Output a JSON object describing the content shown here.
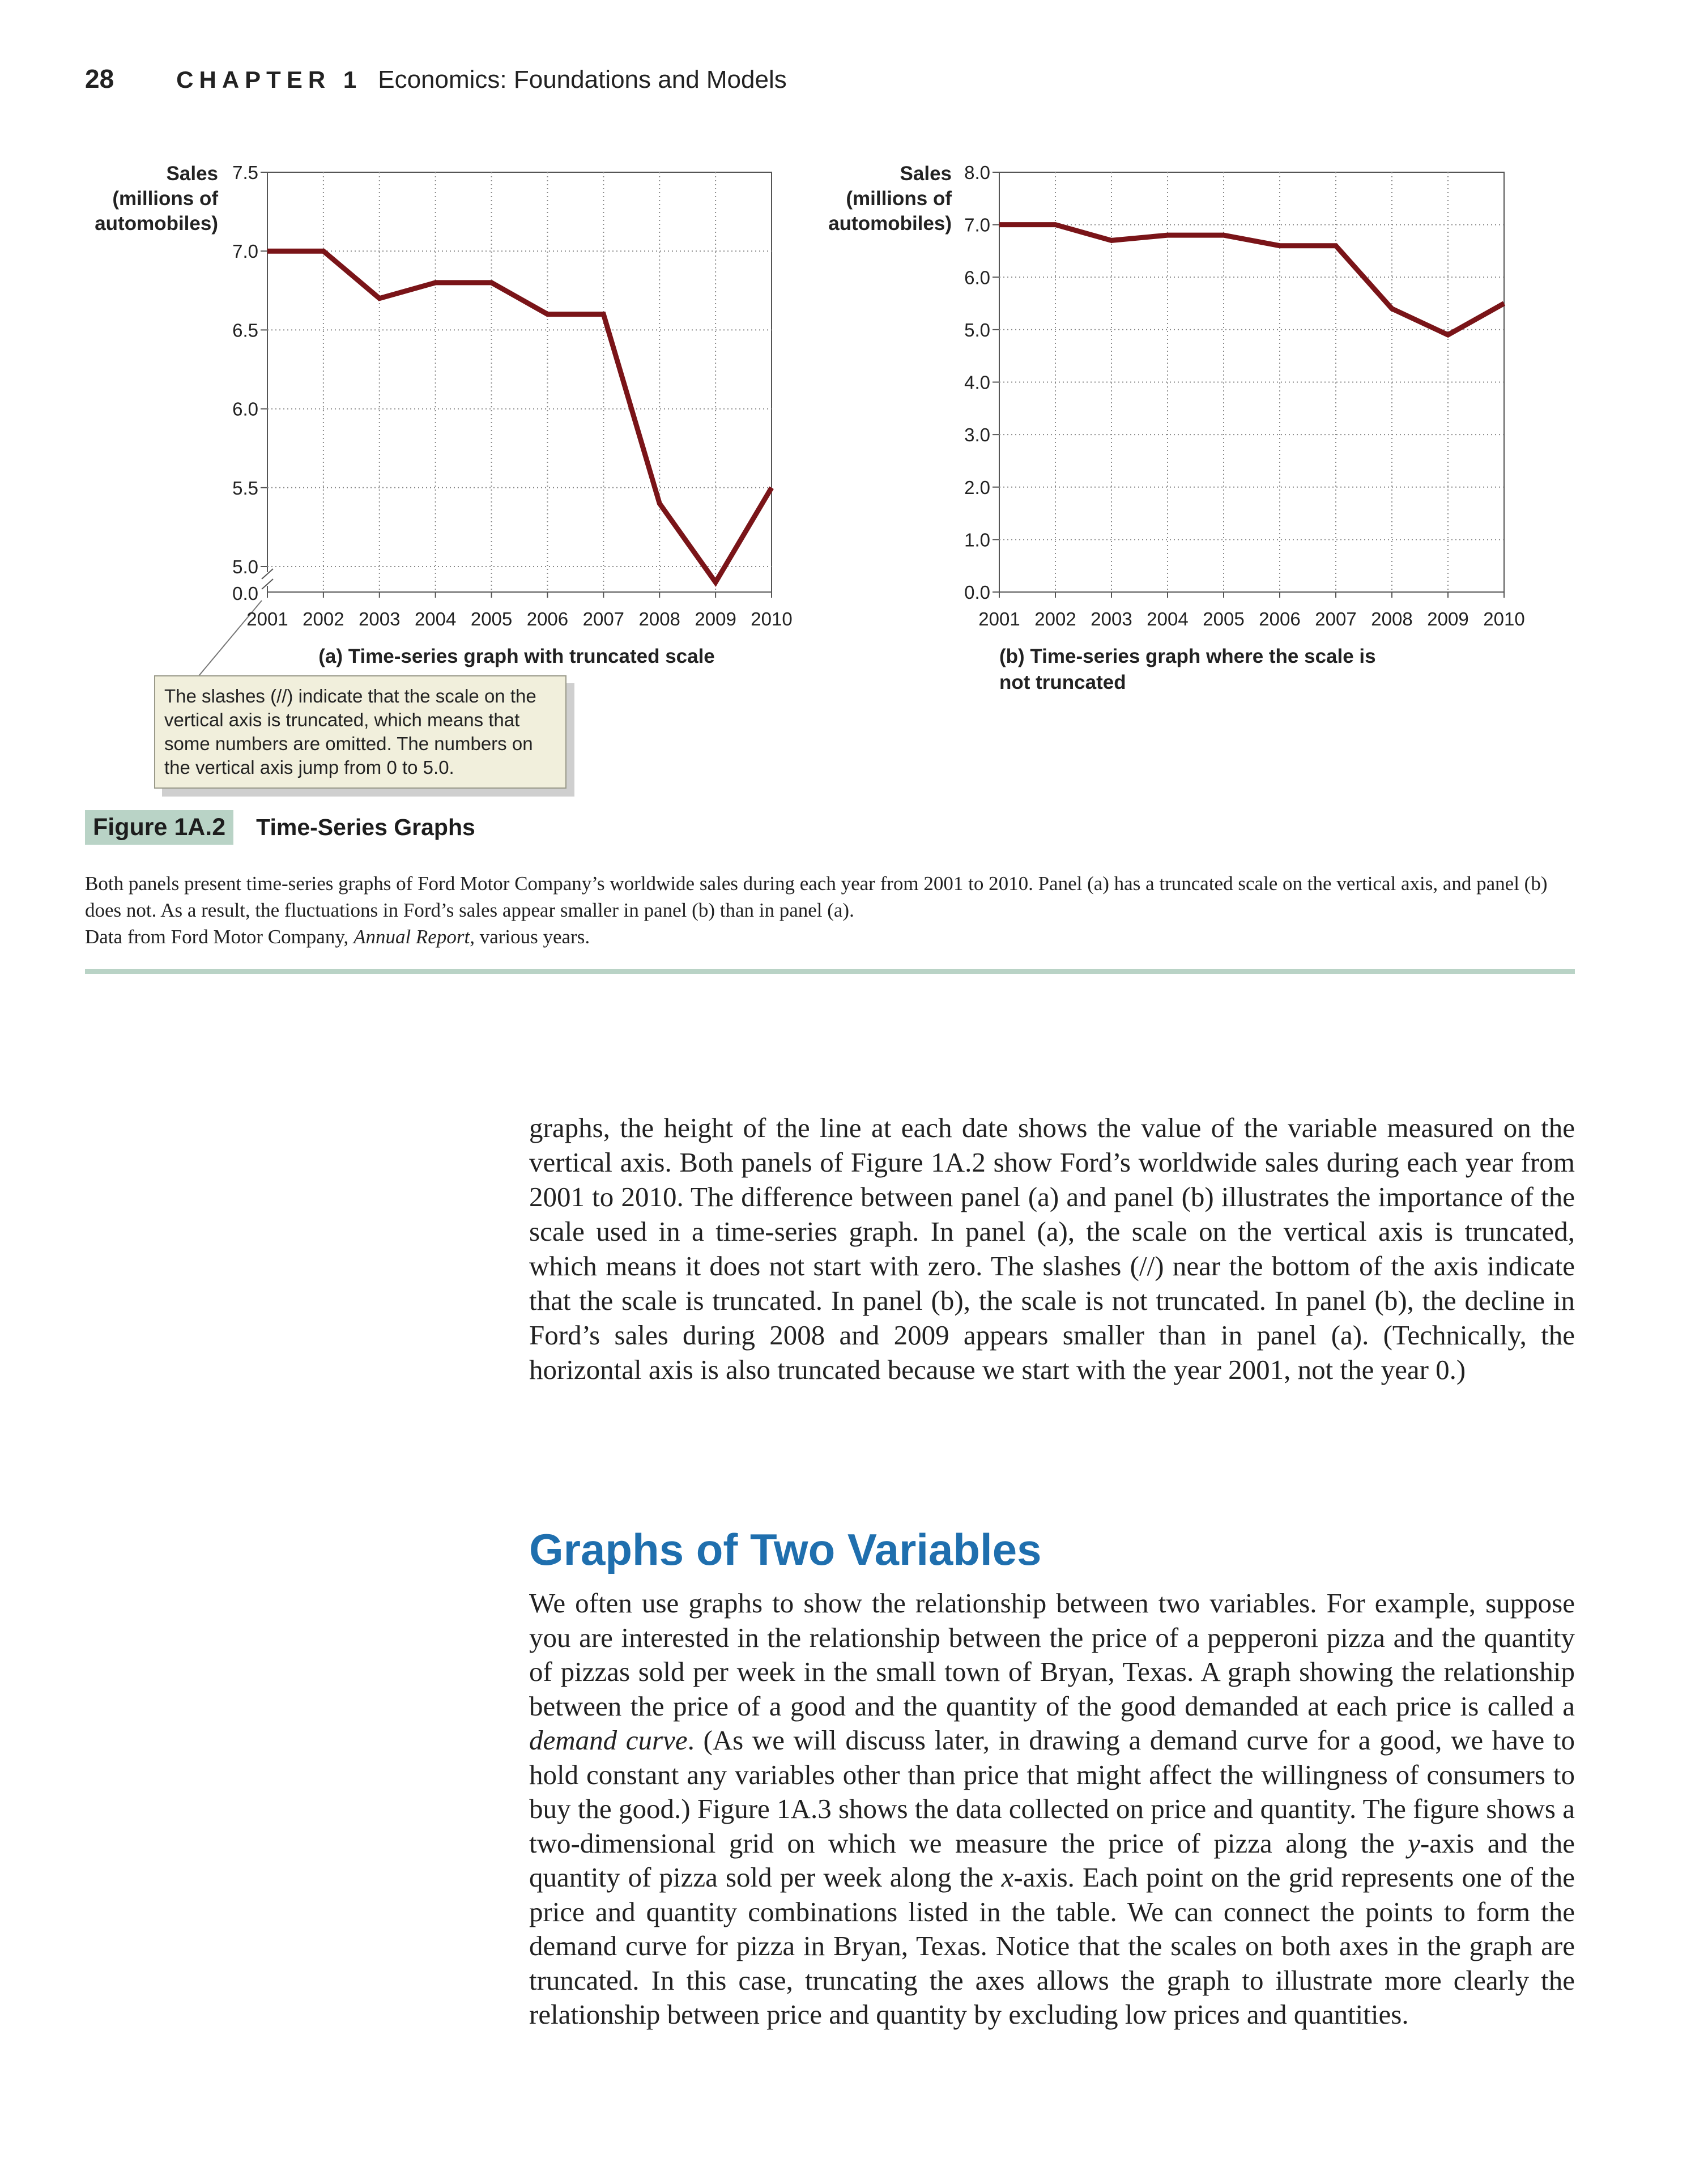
{
  "running_head": {
    "page_number": "28",
    "chapter_label": "CHAPTER 1",
    "chapter_title": "Economics: Foundations and Models"
  },
  "figure": {
    "label": "Figure 1A.2",
    "title": "Time-Series Graphs",
    "caption": "Both panels present time-series graphs of Ford Motor Company’s worldwide sales during each year from 2001 to 2010. Panel (a) has a truncated scale on the vertical axis, and panel (b) does not. As a result, the fluctuations in Ford’s sales appear smaller in panel (b) than in panel (a).",
    "source_prefix": "Data from Ford Motor Company, ",
    "source_title": "Annual Report",
    "source_suffix": ", various years.",
    "callout": "The slashes (//) indicate that the scale on the vertical axis is truncated, which means that some numbers are omitted.  The numbers on the vertical axis jump from 0 to 5.0."
  },
  "chart_data": [
    {
      "type": "line",
      "title": "(a) Time-series graph with truncated scale",
      "ylabel": [
        "Sales",
        "(millions of",
        "automobiles)"
      ],
      "x": [
        2001,
        2002,
        2003,
        2004,
        2005,
        2006,
        2007,
        2008,
        2009,
        2010
      ],
      "x_tick_labels": [
        "2001",
        "2002",
        "2003",
        "2004",
        "2005",
        "2006",
        "2007",
        "2008",
        "2009",
        "2010"
      ],
      "series": [
        {
          "values": [
            7.0,
            7.0,
            6.7,
            6.8,
            6.8,
            6.6,
            6.6,
            5.4,
            4.9,
            5.5
          ]
        }
      ],
      "ylim": [
        4.8,
        7.5
      ],
      "y_tick_values": [
        5.0,
        5.5,
        6.0,
        6.5,
        7.0,
        7.5
      ],
      "y_tick_labels": [
        "5.0",
        "5.5",
        "6.0",
        "6.5",
        "7.0",
        "7.5"
      ],
      "y_origin_label": "0.0",
      "truncated": true,
      "grid": true,
      "line_color": "#7a1418"
    },
    {
      "type": "line",
      "title": "(b) Time-series graph where the scale is not truncated",
      "title_lines": [
        "(b) Time-series graph where the scale is",
        "not truncated"
      ],
      "ylabel": [
        "Sales",
        "(millions of",
        "automobiles)"
      ],
      "x": [
        2001,
        2002,
        2003,
        2004,
        2005,
        2006,
        2007,
        2008,
        2009,
        2010
      ],
      "x_tick_labels": [
        "2001",
        "2002",
        "2003",
        "2004",
        "2005",
        "2006",
        "2007",
        "2008",
        "2009",
        "2010"
      ],
      "series": [
        {
          "values": [
            7.0,
            7.0,
            6.7,
            6.8,
            6.8,
            6.6,
            6.6,
            5.4,
            4.9,
            5.5
          ]
        }
      ],
      "ylim": [
        0,
        8.0
      ],
      "y_tick_values": [
        0,
        1,
        2,
        3,
        4,
        5,
        6,
        7,
        8
      ],
      "y_tick_labels": [
        "0.0",
        "1.0",
        "2.0",
        "3.0",
        "4.0",
        "5.0",
        "6.0",
        "7.0",
        "8.0"
      ],
      "truncated": false,
      "grid": true,
      "line_color": "#7a1418"
    }
  ],
  "body_paragraph": "graphs, the height of the line at each date shows the value of the variable measured on the vertical axis. Both panels of Figure 1A.2 show Ford’s worldwide sales during each year from 2001 to 2010. The difference between panel (a) and panel (b) illustrates the importance of the scale used in a time-series graph. In panel (a), the scale on the vertical axis is truncated, which means it does not start with zero. The slashes (//) near the bottom of the axis indicate that the scale is truncated. In panel (b), the scale is not truncated. In panel (b), the decline in Ford’s sales during 2008 and 2009 appears smaller than in panel (a). (Technically, the horizontal axis is also truncated because we start with the year 2001, not the year 0.)",
  "section": {
    "heading": "Graphs of Two Variables",
    "text_1": "We often use graphs to show the relationship between two variables. For example, suppose you are interested in the relationship between the price of a pepperoni pizza and the quantity of pizzas sold per week in the small town of Bryan, Texas. A graph showing the relationship between the price of a good and the quantity of the good demanded at each price is called a ",
    "term": "demand curve",
    "text_2": ". (As we will discuss later, in drawing a demand curve for a good, we have to hold constant any variables other than price that might affect the willingness of consumers to buy the good.) Figure 1A.3 shows the data collected on price and quantity. The figure shows a two-dimensional grid on which we measure the price of pizza along the ",
    "y_var": "y",
    "text_3": "-axis and the quantity of pizza sold per week along the ",
    "x_var": "x",
    "text_4": "-axis. Each point on the grid represents one of the price and quantity combinations listed in the table. We can connect the points to form the demand curve for pizza in Bryan, Texas. Notice that the scales on both axes in the graph are truncated. In this case, truncating the axes allows the graph to illustrate more clearly the relationship between price and quantity by excluding low prices and quantities."
  }
}
